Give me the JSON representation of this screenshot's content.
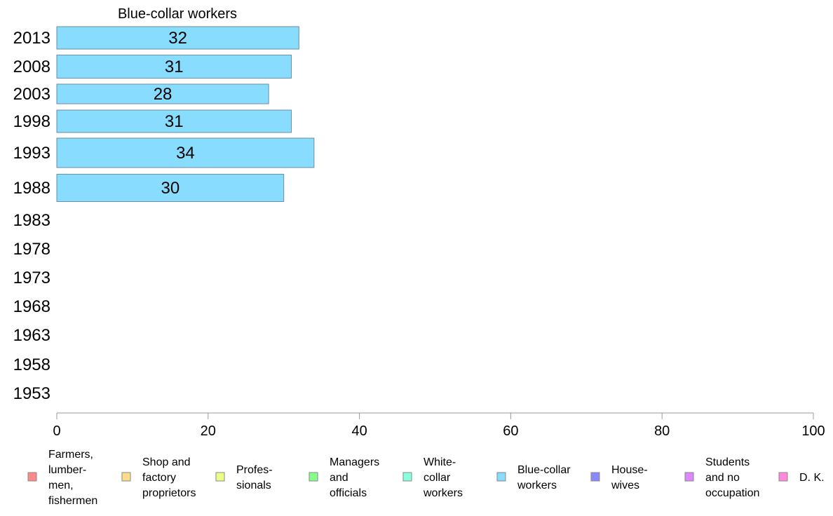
{
  "chart_data": {
    "type": "bar",
    "orientation": "horizontal",
    "title": "Blue-collar workers",
    "categories": [
      "2013",
      "2008",
      "2003",
      "1998",
      "1993",
      "1988",
      "1983",
      "1978",
      "1973",
      "1968",
      "1963",
      "1958",
      "1953"
    ],
    "series": [
      {
        "name": "Blue-collar workers",
        "color": "#88ddff",
        "values": [
          32,
          31,
          28,
          31,
          34,
          30,
          null,
          null,
          null,
          null,
          null,
          null,
          null
        ],
        "value_labels": [
          "32",
          "31",
          "28",
          "31",
          "34",
          "30",
          "",
          "",
          "",
          "",
          "",
          "",
          ""
        ]
      }
    ],
    "xlim": [
      0,
      100
    ],
    "xticks": [
      "0",
      "20",
      "40",
      "60",
      "80",
      "100"
    ],
    "xlabel": "",
    "ylabel": "",
    "grid": false,
    "legend_position": "bottom",
    "legend": [
      {
        "lines": [
          "Farmers,",
          "lumber-",
          "men,",
          "fishermen"
        ],
        "color": "#ff8888"
      },
      {
        "lines": [
          "Shop and",
          "factory",
          "proprietors"
        ],
        "color": "#ffdd88"
      },
      {
        "lines": [
          "Profes-",
          "sionals"
        ],
        "color": "#eeff88"
      },
      {
        "lines": [
          "Managers",
          "and",
          "officials"
        ],
        "color": "#88ff88"
      },
      {
        "lines": [
          "White-",
          "collar",
          "workers"
        ],
        "color": "#88ffdd"
      },
      {
        "lines": [
          "Blue-collar",
          "workers"
        ],
        "color": "#88ddff"
      },
      {
        "lines": [
          "House-",
          "wives"
        ],
        "color": "#8888ff"
      },
      {
        "lines": [
          "Students",
          "and no",
          "occupation"
        ],
        "color": "#dd88ff"
      },
      {
        "lines": [
          "D. K."
        ],
        "color": "#ff88dd"
      }
    ]
  }
}
